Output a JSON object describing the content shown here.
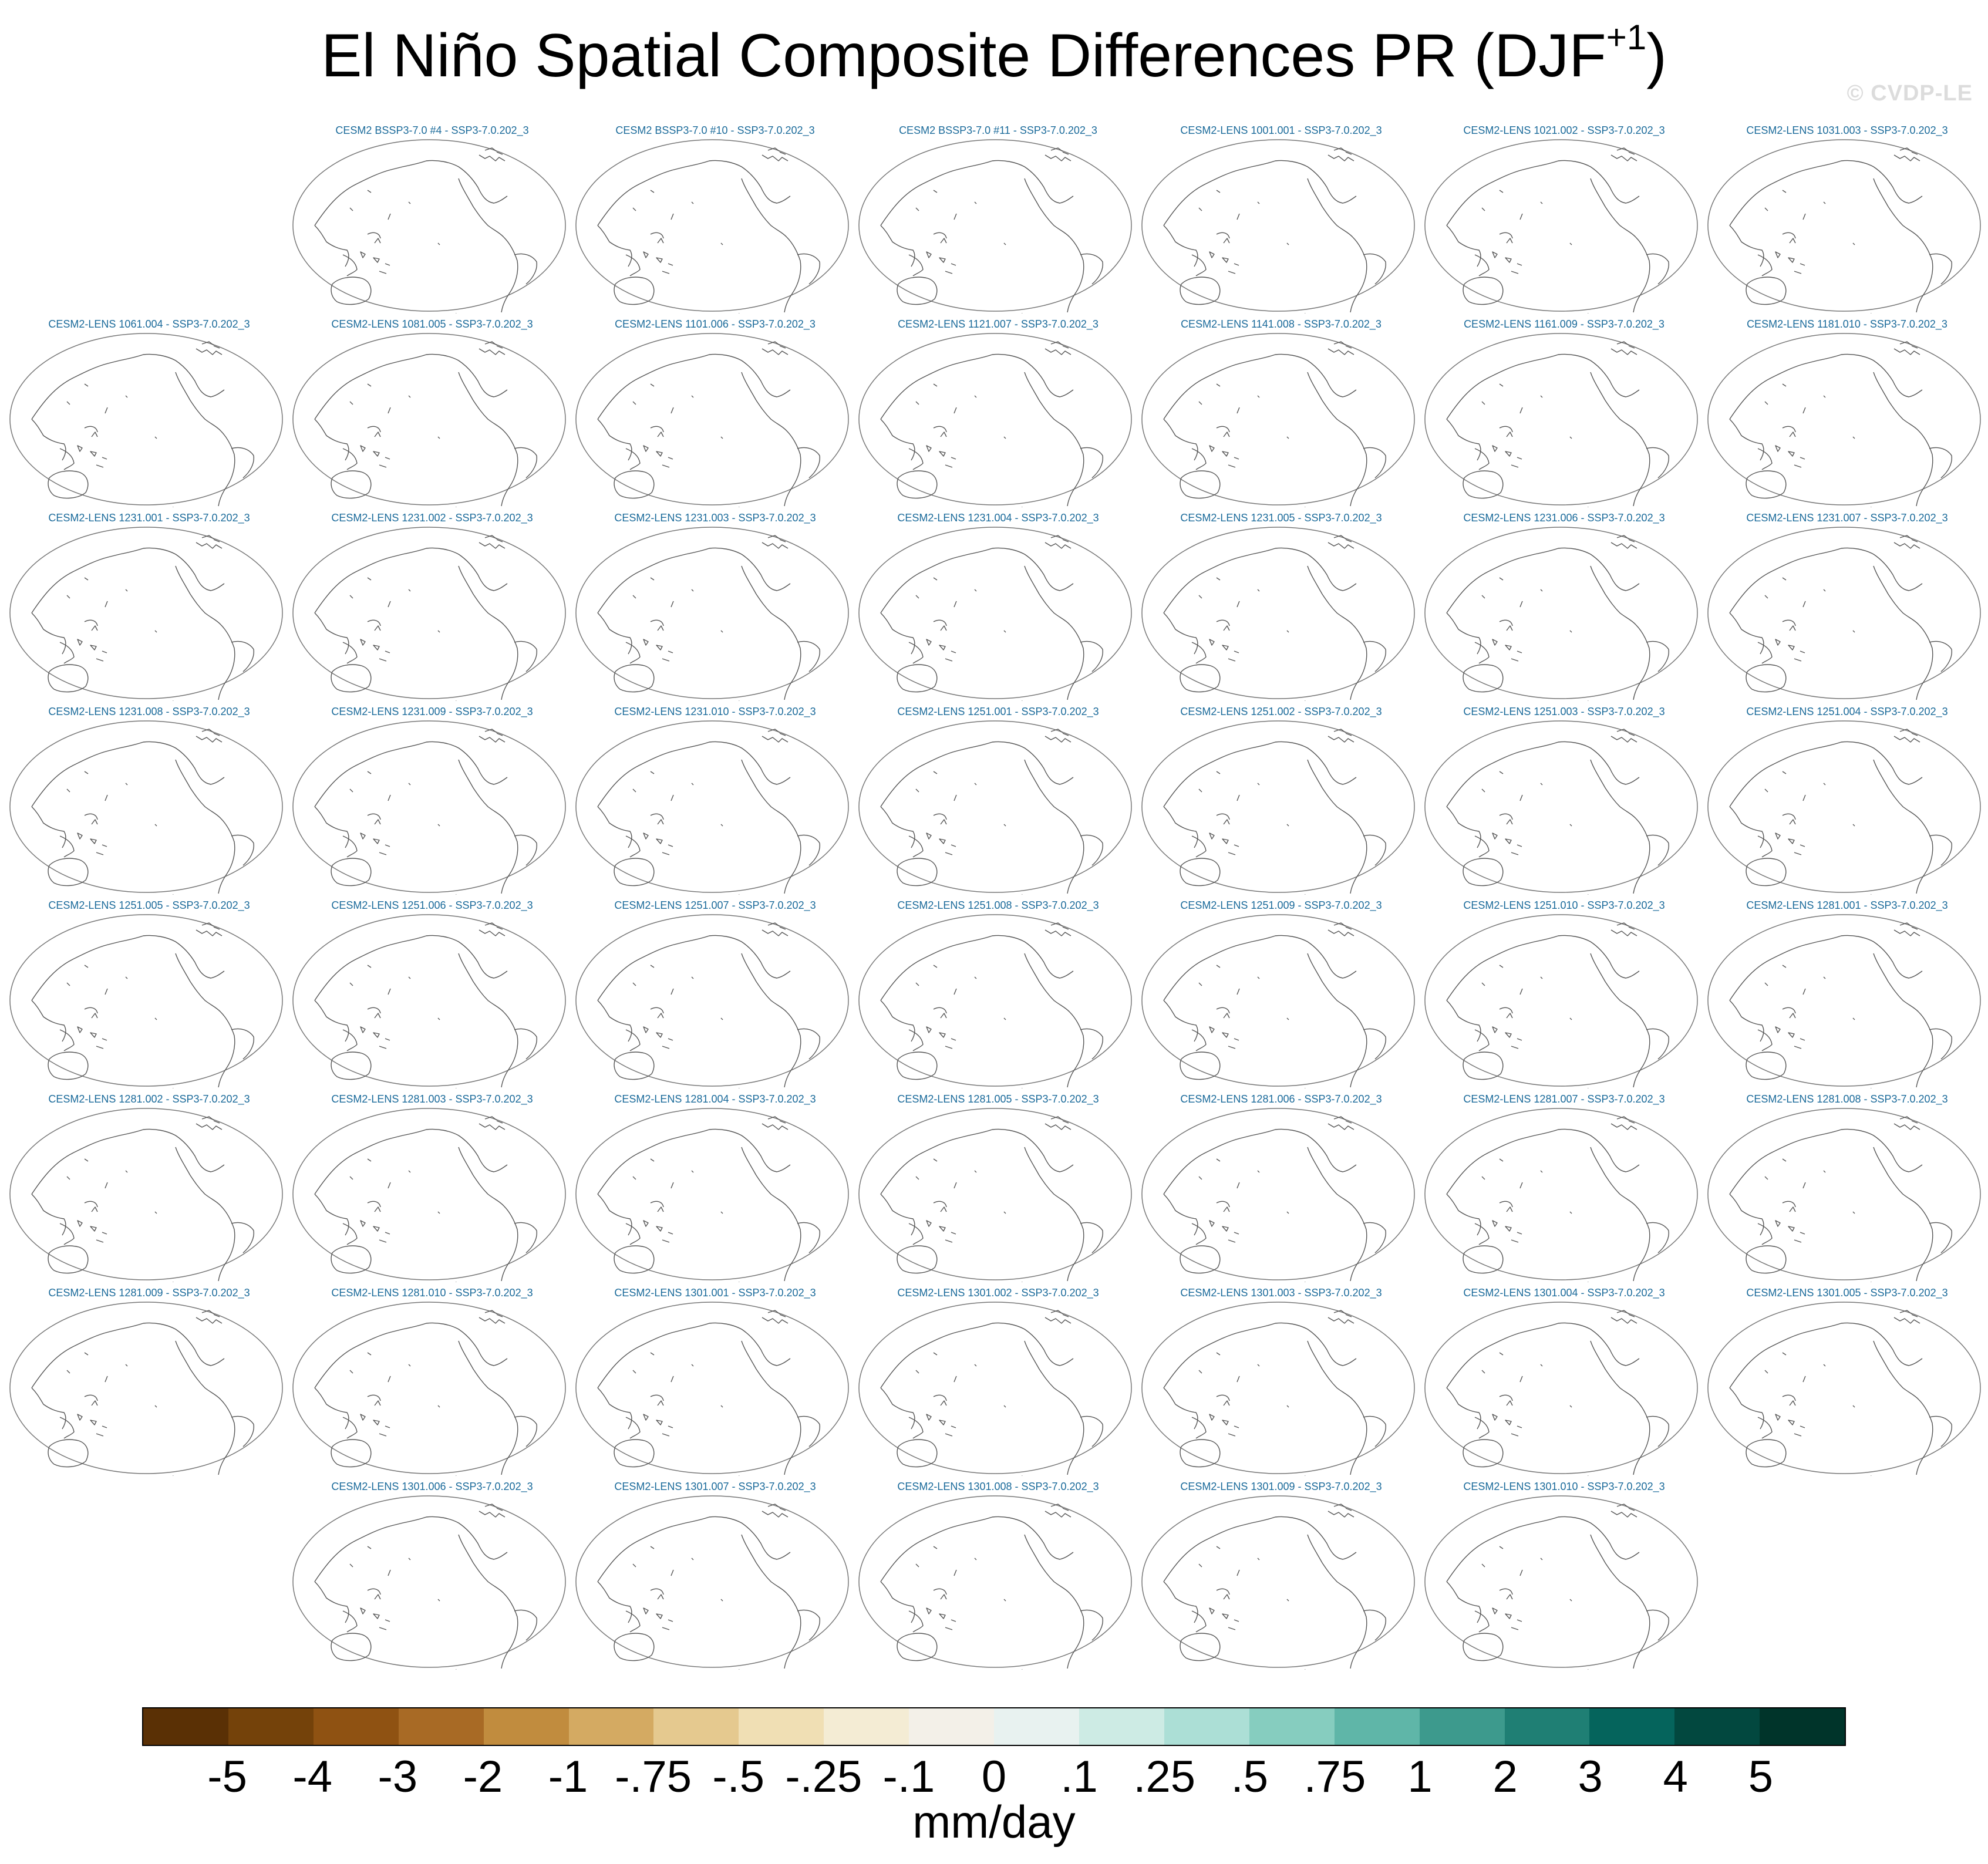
{
  "title": {
    "main": "El Niño Spatial Composite Differences PR (DJF",
    "superscript": "+1",
    "close": ")"
  },
  "watermark": "© CVDP-LE",
  "panels": [
    {
      "label": "CESM2 BSSP3-7.0 #4 - SSP3-7.0.202_3",
      "row": 0,
      "col": 1
    },
    {
      "label": "CESM2 BSSP3-7.0 #10 - SSP3-7.0.202_3",
      "row": 0,
      "col": 2
    },
    {
      "label": "CESM2 BSSP3-7.0 #11 - SSP3-7.0.202_3",
      "row": 0,
      "col": 3
    },
    {
      "label": "CESM2-LENS 1001.001 - SSP3-7.0.202_3",
      "row": 0,
      "col": 4
    },
    {
      "label": "CESM2-LENS 1021.002 - SSP3-7.0.202_3",
      "row": 0,
      "col": 5
    },
    {
      "label": "CESM2-LENS 1031.003 - SSP3-7.0.202_3",
      "row": 0,
      "col": 6
    },
    {
      "label": "CESM2-LENS 1061.004 - SSP3-7.0.202_3",
      "row": 1,
      "col": 0
    },
    {
      "label": "CESM2-LENS 1081.005 - SSP3-7.0.202_3",
      "row": 1,
      "col": 1
    },
    {
      "label": "CESM2-LENS 1101.006 - SSP3-7.0.202_3",
      "row": 1,
      "col": 2
    },
    {
      "label": "CESM2-LENS 1121.007 - SSP3-7.0.202_3",
      "row": 1,
      "col": 3
    },
    {
      "label": "CESM2-LENS 1141.008 - SSP3-7.0.202_3",
      "row": 1,
      "col": 4
    },
    {
      "label": "CESM2-LENS 1161.009 - SSP3-7.0.202_3",
      "row": 1,
      "col": 5
    },
    {
      "label": "CESM2-LENS 1181.010 - SSP3-7.0.202_3",
      "row": 1,
      "col": 6
    },
    {
      "label": "CESM2-LENS 1231.001 - SSP3-7.0.202_3",
      "row": 2,
      "col": 0
    },
    {
      "label": "CESM2-LENS 1231.002 - SSP3-7.0.202_3",
      "row": 2,
      "col": 1
    },
    {
      "label": "CESM2-LENS 1231.003 - SSP3-7.0.202_3",
      "row": 2,
      "col": 2
    },
    {
      "label": "CESM2-LENS 1231.004 - SSP3-7.0.202_3",
      "row": 2,
      "col": 3
    },
    {
      "label": "CESM2-LENS 1231.005 - SSP3-7.0.202_3",
      "row": 2,
      "col": 4
    },
    {
      "label": "CESM2-LENS 1231.006 - SSP3-7.0.202_3",
      "row": 2,
      "col": 5
    },
    {
      "label": "CESM2-LENS 1231.007 - SSP3-7.0.202_3",
      "row": 2,
      "col": 6
    },
    {
      "label": "CESM2-LENS 1231.008 - SSP3-7.0.202_3",
      "row": 3,
      "col": 0
    },
    {
      "label": "CESM2-LENS 1231.009 - SSP3-7.0.202_3",
      "row": 3,
      "col": 1
    },
    {
      "label": "CESM2-LENS 1231.010 - SSP3-7.0.202_3",
      "row": 3,
      "col": 2
    },
    {
      "label": "CESM2-LENS 1251.001 - SSP3-7.0.202_3",
      "row": 3,
      "col": 3
    },
    {
      "label": "CESM2-LENS 1251.002 - SSP3-7.0.202_3",
      "row": 3,
      "col": 4
    },
    {
      "label": "CESM2-LENS 1251.003 - SSP3-7.0.202_3",
      "row": 3,
      "col": 5
    },
    {
      "label": "CESM2-LENS 1251.004 - SSP3-7.0.202_3",
      "row": 3,
      "col": 6
    },
    {
      "label": "CESM2-LENS 1251.005 - SSP3-7.0.202_3",
      "row": 4,
      "col": 0
    },
    {
      "label": "CESM2-LENS 1251.006 - SSP3-7.0.202_3",
      "row": 4,
      "col": 1
    },
    {
      "label": "CESM2-LENS 1251.007 - SSP3-7.0.202_3",
      "row": 4,
      "col": 2
    },
    {
      "label": "CESM2-LENS 1251.008 - SSP3-7.0.202_3",
      "row": 4,
      "col": 3
    },
    {
      "label": "CESM2-LENS 1251.009 - SSP3-7.0.202_3",
      "row": 4,
      "col": 4
    },
    {
      "label": "CESM2-LENS 1251.010 - SSP3-7.0.202_3",
      "row": 4,
      "col": 5
    },
    {
      "label": "CESM2-LENS 1281.001 - SSP3-7.0.202_3",
      "row": 4,
      "col": 6
    },
    {
      "label": "CESM2-LENS 1281.002 - SSP3-7.0.202_3",
      "row": 5,
      "col": 0
    },
    {
      "label": "CESM2-LENS 1281.003 - SSP3-7.0.202_3",
      "row": 5,
      "col": 1
    },
    {
      "label": "CESM2-LENS 1281.004 - SSP3-7.0.202_3",
      "row": 5,
      "col": 2
    },
    {
      "label": "CESM2-LENS 1281.005 - SSP3-7.0.202_3",
      "row": 5,
      "col": 3
    },
    {
      "label": "CESM2-LENS 1281.006 - SSP3-7.0.202_3",
      "row": 5,
      "col": 4
    },
    {
      "label": "CESM2-LENS 1281.007 - SSP3-7.0.202_3",
      "row": 5,
      "col": 5
    },
    {
      "label": "CESM2-LENS 1281.008 - SSP3-7.0.202_3",
      "row": 5,
      "col": 6
    },
    {
      "label": "CESM2-LENS 1281.009 - SSP3-7.0.202_3",
      "row": 6,
      "col": 0
    },
    {
      "label": "CESM2-LENS 1281.010 - SSP3-7.0.202_3",
      "row": 6,
      "col": 1
    },
    {
      "label": "CESM2-LENS 1301.001 - SSP3-7.0.202_3",
      "row": 6,
      "col": 2
    },
    {
      "label": "CESM2-LENS 1301.002 - SSP3-7.0.202_3",
      "row": 6,
      "col": 3
    },
    {
      "label": "CESM2-LENS 1301.003 - SSP3-7.0.202_3",
      "row": 6,
      "col": 4
    },
    {
      "label": "CESM2-LENS 1301.004 - SSP3-7.0.202_3",
      "row": 6,
      "col": 5
    },
    {
      "label": "CESM2-LENS 1301.005 - SSP3-7.0.202_3",
      "row": 6,
      "col": 6
    },
    {
      "label": "CESM2-LENS 1301.006 - SSP3-7.0.202_3",
      "row": 7,
      "col": 1
    },
    {
      "label": "CESM2-LENS 1301.007 - SSP3-7.0.202_3",
      "row": 7,
      "col": 2
    },
    {
      "label": "CESM2-LENS 1301.008 - SSP3-7.0.202_3",
      "row": 7,
      "col": 3
    },
    {
      "label": "CESM2-LENS 1301.009 - SSP3-7.0.202_3",
      "row": 7,
      "col": 4
    },
    {
      "label": "CESM2-LENS 1301.010 - SSP3-7.0.202_3",
      "row": 7,
      "col": 5
    }
  ],
  "colorbar": {
    "colors": [
      "#5a3005",
      "#74420a",
      "#8f5212",
      "#a86a25",
      "#c18c3e",
      "#d4aa62",
      "#e5c98f",
      "#f0dfb4",
      "#f4ecd4",
      "#f3f0e8",
      "#e8f2f0",
      "#cdebe4",
      "#acdfd6",
      "#86cdbf",
      "#5fb6a8",
      "#3d9a8d",
      "#1f7f74",
      "#05645c",
      "#02483f",
      "#00342a"
    ],
    "tick_labels": [
      "-5",
      "-4",
      "-3",
      "-2",
      "-1",
      "-.75",
      "-.5",
      "-.25",
      "-.1",
      "0",
      ".1",
      ".25",
      ".5",
      ".75",
      "1",
      "2",
      "3",
      "4",
      "5"
    ],
    "units": "mm/day"
  }
}
